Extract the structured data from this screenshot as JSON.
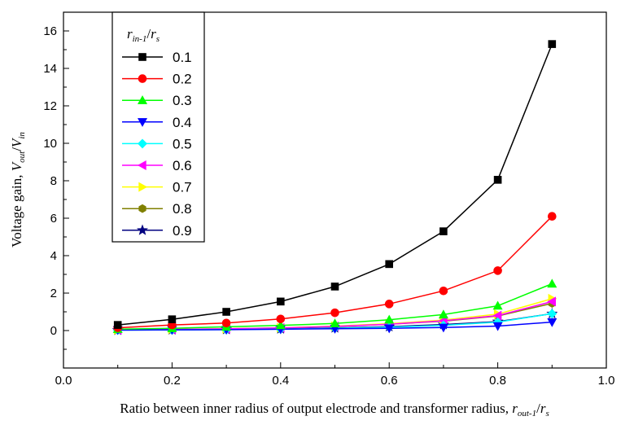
{
  "chart_data": {
    "type": "line",
    "title": "",
    "xlabel": "Ratio between inner radius of output electrode and transformer radius, r_out-1/r_s",
    "xlabel_parts": {
      "main": "Ratio between inner radius of output electrode and transformer radius, ",
      "r1": "r",
      "sub1": "out-1",
      "slash": "/",
      "r2": "r",
      "sub2": "s"
    },
    "ylabel": "Voltage gain, V_out/V_in",
    "ylabel_parts": {
      "main": "Voltage gain, ",
      "v1": "V",
      "sub1": "out",
      "slash": "/",
      "v2": "V",
      "sub2": "in"
    },
    "legend_title": "r_in-1/r_s",
    "legend_title_parts": {
      "r1": "r",
      "sub1": "in-1",
      "slash": "/",
      "r2": "r",
      "sub2": "s"
    },
    "xlim": [
      0.0,
      1.0
    ],
    "ylim": [
      -2,
      17
    ],
    "x_ticks": [
      "0.0",
      "0.2",
      "0.4",
      "0.6",
      "0.8",
      "1.0"
    ],
    "y_ticks": [
      "0",
      "2",
      "4",
      "6",
      "8",
      "10",
      "12",
      "14",
      "16"
    ],
    "grid": false,
    "legend_position": "top-left",
    "x": [
      0.1,
      0.2,
      0.3,
      0.4,
      0.5,
      0.6,
      0.7,
      0.8,
      0.9
    ],
    "series": [
      {
        "name": "0.1",
        "color": "#000000",
        "marker": "square",
        "values": [
          0.3,
          0.6,
          1.0,
          1.55,
          2.35,
          3.55,
          5.3,
          8.05,
          15.3
        ]
      },
      {
        "name": "0.2",
        "color": "#ff0000",
        "marker": "circle",
        "values": [
          0.15,
          0.3,
          0.4,
          0.62,
          0.95,
          1.42,
          2.12,
          3.2,
          6.1
        ]
      },
      {
        "name": "0.3",
        "color": "#00ff00",
        "marker": "triangle-up",
        "values": [
          0.08,
          0.12,
          0.2,
          0.28,
          0.38,
          0.58,
          0.85,
          1.32,
          2.5
        ]
      },
      {
        "name": "0.4",
        "color": "#0000ff",
        "marker": "triangle-down",
        "values": [
          0.03,
          0.04,
          0.05,
          0.07,
          0.1,
          0.12,
          0.16,
          0.24,
          0.45
        ]
      },
      {
        "name": "0.5",
        "color": "#00ffff",
        "marker": "diamond",
        "values": [
          0.02,
          0.03,
          0.05,
          0.08,
          0.12,
          0.18,
          0.28,
          0.45,
          0.9
        ]
      },
      {
        "name": "0.6",
        "color": "#ff00ff",
        "marker": "triangle-left",
        "values": [
          0.04,
          0.06,
          0.09,
          0.14,
          0.22,
          0.34,
          0.52,
          0.8,
          1.55
        ]
      },
      {
        "name": "0.7",
        "color": "#ffff00",
        "marker": "triangle-right",
        "values": [
          0.04,
          0.07,
          0.1,
          0.15,
          0.24,
          0.37,
          0.56,
          0.88,
          1.7
        ]
      },
      {
        "name": "0.8",
        "color": "#808000",
        "marker": "hexagon",
        "values": [
          0.04,
          0.06,
          0.09,
          0.14,
          0.22,
          0.34,
          0.5,
          0.78,
          1.45
        ]
      },
      {
        "name": "0.9",
        "color": "#000080",
        "marker": "star",
        "values": [
          0.02,
          0.04,
          0.06,
          0.09,
          0.14,
          0.21,
          0.32,
          0.48,
          0.9
        ]
      }
    ]
  }
}
